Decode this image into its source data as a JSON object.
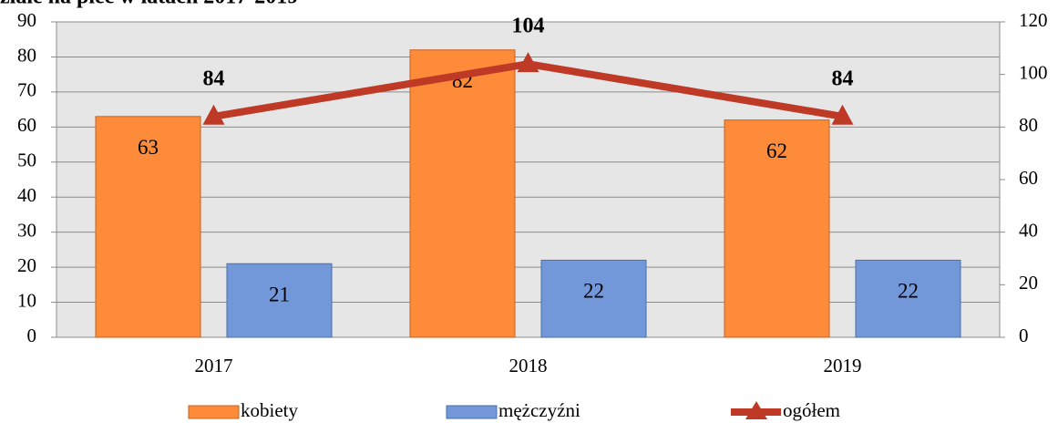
{
  "chart_data": {
    "type": "bar",
    "title": "ziale na płeć w latach 2017-2019",
    "categories": [
      "2017",
      "2018",
      "2019"
    ],
    "series": [
      {
        "name": "kobiety",
        "type": "bar",
        "color": "#fd8b3a",
        "values": [
          63,
          82,
          62
        ]
      },
      {
        "name": "mężczyźni",
        "type": "bar",
        "color": "#7398d9",
        "values": [
          21,
          22,
          22
        ]
      },
      {
        "name": "ogółem",
        "type": "line",
        "axis": "y2",
        "color": "#be3a26",
        "values": [
          84,
          104,
          84
        ]
      }
    ],
    "ylim": [
      0,
      90
    ],
    "yticks": [
      0,
      10,
      20,
      30,
      40,
      50,
      60,
      70,
      80,
      90
    ],
    "y2lim": [
      0,
      120
    ],
    "y2ticks": [
      0,
      20,
      40,
      60,
      80,
      100,
      120
    ],
    "grid": true,
    "legend": "bottom"
  }
}
